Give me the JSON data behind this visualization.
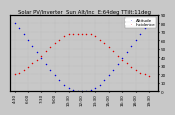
{
  "title": "Solar PV/Inverter  Sun Alt/Inc  E:64deg TTilt:11deg",
  "legend_blue": "Altitude",
  "legend_red": "Incidence",
  "bg_color": "#c8c8c8",
  "plot_bg_color": "#c8c8c8",
  "blue_color": "#0000dd",
  "red_color": "#dd0000",
  "ylim": [
    0,
    90
  ],
  "yticks_right": [
    0,
    10,
    20,
    30,
    40,
    50,
    60,
    70,
    80,
    90
  ],
  "ytick_labels_right": [
    "0",
    "10",
    "20",
    "30",
    "40",
    "50",
    "60",
    "70",
    "80",
    "90"
  ],
  "time_hours": [
    4.5,
    5.0,
    5.5,
    6.0,
    6.5,
    7.0,
    7.5,
    8.0,
    8.5,
    9.0,
    9.5,
    10.0,
    10.5,
    11.0,
    11.5,
    12.0,
    12.5,
    13.0,
    13.5,
    14.0,
    14.5,
    15.0,
    15.5,
    16.0,
    16.5,
    17.0,
    17.5,
    18.0,
    18.5,
    19.0,
    19.5
  ],
  "altitude_vals": [
    80,
    74,
    67,
    60,
    53,
    46,
    39,
    32,
    25,
    19,
    13,
    8,
    4,
    2,
    1,
    0,
    1,
    2,
    4,
    8,
    13,
    19,
    25,
    32,
    39,
    46,
    53,
    60,
    67,
    74,
    80
  ],
  "incidence_vals": [
    20,
    22,
    25,
    29,
    33,
    37,
    42,
    47,
    52,
    57,
    61,
    65,
    67,
    68,
    68,
    68,
    68,
    67,
    65,
    61,
    57,
    52,
    47,
    42,
    37,
    33,
    29,
    25,
    22,
    20,
    18
  ],
  "xtick_positions": [
    4.5,
    6.0,
    7.5,
    9.0,
    10.5,
    12.0,
    13.5,
    15.0,
    16.5,
    18.0,
    19.5
  ],
  "xtick_labels": [
    "4:30",
    "6:00",
    "7:30",
    "9:00",
    "10:30",
    "12:00",
    "13:30",
    "15:00",
    "16:30",
    "18:00",
    "19:30"
  ],
  "title_fontsize": 3.8,
  "tick_fontsize": 3.0,
  "legend_fontsize": 3.0,
  "dot_size": 1.2,
  "grid_color": "#aaaaaa",
  "xlim": [
    4.0,
    20.5
  ]
}
